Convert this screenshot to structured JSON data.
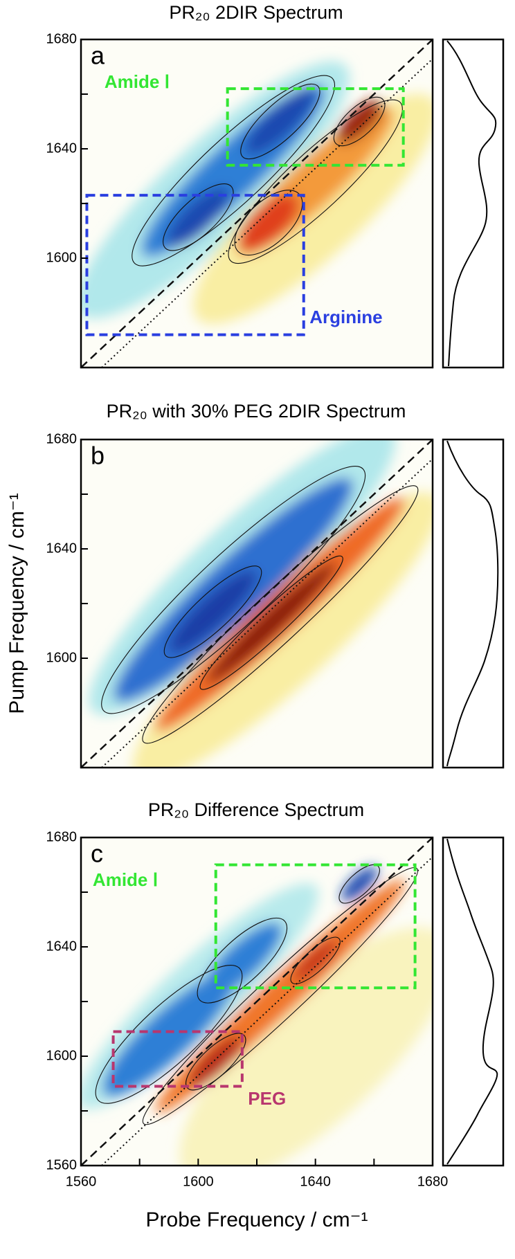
{
  "chart_data": [
    {
      "type": "contour",
      "title": "PR₂₀ 2DIR Spectrum",
      "panel_label": "a",
      "xlim": [
        1560,
        1680
      ],
      "ylim": [
        1560,
        1680
      ],
      "yticks": [
        1600,
        1640,
        1680
      ],
      "annotations": [
        {
          "text": "Amide Ⅰ",
          "color": "#33e633",
          "x": [
            1610,
            1670
          ],
          "y": [
            1634,
            1662
          ],
          "label_at": [
            1568,
            1664
          ]
        },
        {
          "text": "Arginine",
          "color": "#2a3fe0",
          "x": [
            1562,
            1636
          ],
          "y": [
            1572,
            1623
          ],
          "label_at": [
            1638,
            1578
          ]
        }
      ]
    },
    {
      "type": "contour",
      "title": "PR₂₀ with 30% PEG 2DIR Spectrum",
      "panel_label": "b",
      "xlim": [
        1560,
        1680
      ],
      "ylim": [
        1560,
        1680
      ],
      "yticks": [
        1600,
        1640,
        1680
      ],
      "ylabel": "Pump Frequency / cm⁻¹"
    },
    {
      "type": "contour",
      "title": "PR₂₀ Difference Spectrum",
      "panel_label": "c",
      "xlim": [
        1560,
        1680
      ],
      "ylim": [
        1560,
        1680
      ],
      "yticks": [
        1560,
        1600,
        1640,
        1680
      ],
      "xticks": [
        1560,
        1600,
        1640,
        1680
      ],
      "xlabel": "Probe Frequency / cm⁻¹",
      "annotations": [
        {
          "text": "Amide Ⅰ",
          "color": "#33e633",
          "x": [
            1606,
            1674
          ],
          "y": [
            1625,
            1670
          ],
          "label_at": [
            1564,
            1664
          ]
        },
        {
          "text": "PEG",
          "color": "#b8366e",
          "x": [
            1571,
            1615
          ],
          "y": [
            1589,
            1609
          ],
          "label_at": [
            1617,
            1584
          ]
        }
      ]
    }
  ]
}
